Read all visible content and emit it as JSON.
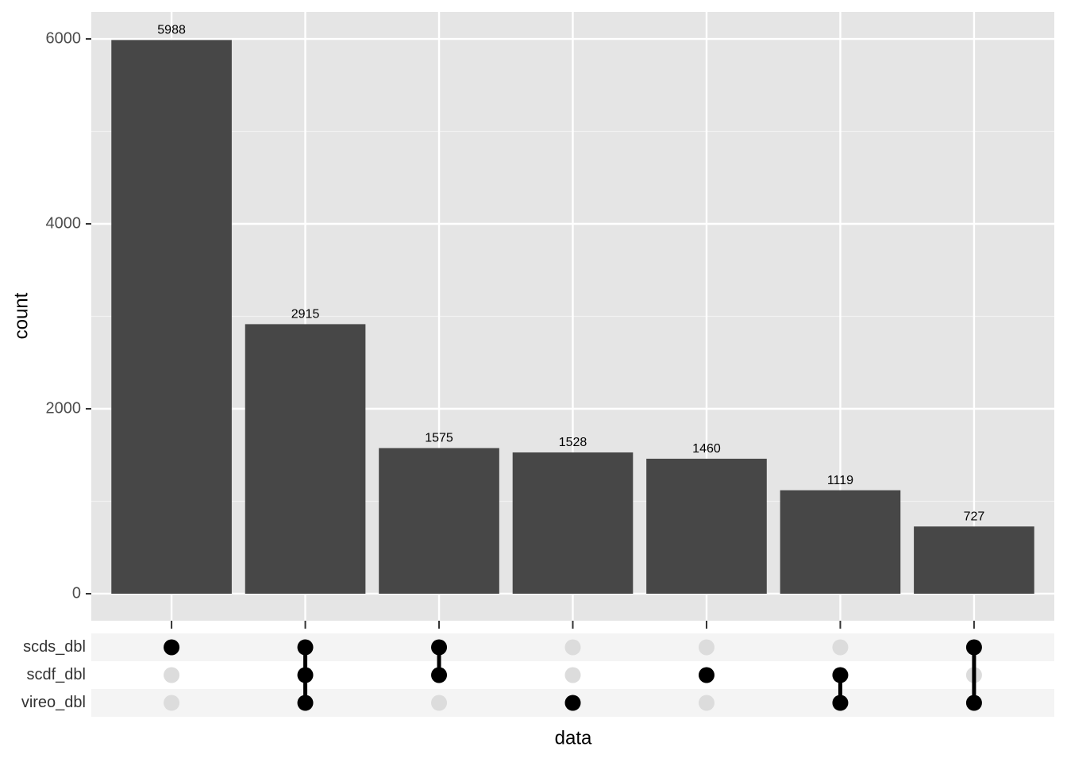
{
  "chart_data": {
    "type": "upset",
    "x_label": "data",
    "y_label": "count",
    "values": [
      5988,
      2915,
      1575,
      1528,
      1460,
      1119,
      727
    ],
    "color": "#474747",
    "ylim": [
      -292,
      6292
    ],
    "yticks": [
      0,
      2000,
      4000,
      6000
    ],
    "minor_yticks": [
      1000,
      3000,
      5000
    ],
    "grid": true,
    "sets": [
      "scds_dbl",
      "scdf_dbl",
      "vireo_dbl"
    ],
    "membership": [
      [
        true,
        false,
        false
      ],
      [
        true,
        true,
        true
      ],
      [
        true,
        true,
        false
      ],
      [
        false,
        false,
        true
      ],
      [
        false,
        true,
        false
      ],
      [
        false,
        true,
        true
      ],
      [
        true,
        false,
        true
      ]
    ],
    "dot_color": "#000000",
    "empty_dot_color": "#dcdcdc"
  }
}
